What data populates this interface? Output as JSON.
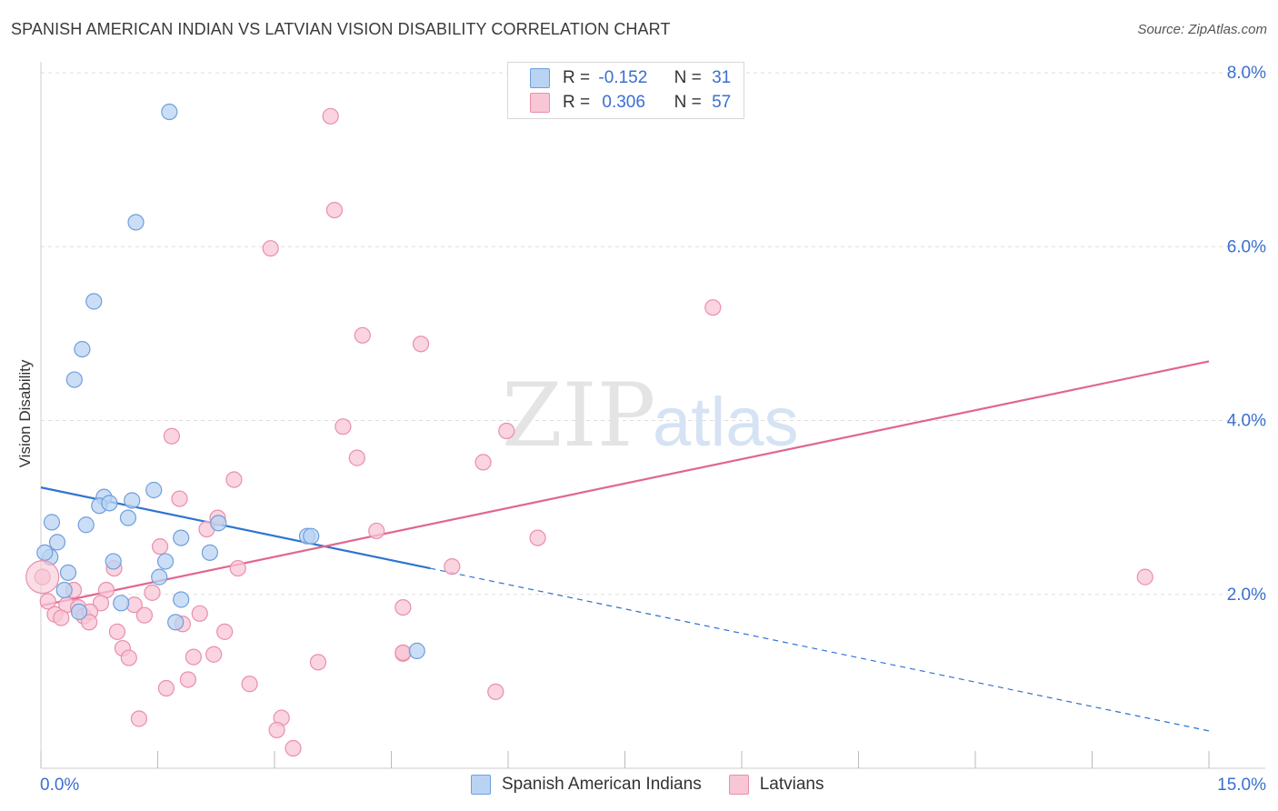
{
  "title": "SPANISH AMERICAN INDIAN VS LATVIAN VISION DISABILITY CORRELATION CHART",
  "source": "Source: ZipAtlas.com",
  "watermark": {
    "zip": "ZIP",
    "atlas": "atlas"
  },
  "colors": {
    "blue_fill": "#b9d3f3",
    "blue_stroke": "#6f9fdc",
    "blue_line": "#2f74d0",
    "pink_fill": "#f8c6d5",
    "pink_stroke": "#ea8faa",
    "pink_line": "#e0668f",
    "tick_label": "#3a6fd0",
    "grid": "#dddddd"
  },
  "legend_top": [
    {
      "r_label": "R =",
      "r_value": "-0.152",
      "n_label": "N =",
      "n_value": "31",
      "color": "blue"
    },
    {
      "r_label": "R =",
      "r_value": "0.306",
      "n_label": "N =",
      "n_value": "57",
      "color": "pink"
    }
  ],
  "legend_bottom": [
    {
      "label": "Spanish American Indians",
      "color": "blue"
    },
    {
      "label": "Latvians",
      "color": "pink"
    }
  ],
  "chart_data": {
    "type": "scatter",
    "title": "SPANISH AMERICAN INDIAN VS LATVIAN VISION DISABILITY CORRELATION CHART",
    "xlabel": "",
    "ylabel": "Vision Disability",
    "xlim": [
      0,
      15
    ],
    "ylim": [
      0,
      8.3
    ],
    "x_tick_labels": [
      "0.0%",
      "15.0%"
    ],
    "y_ticks": [
      2,
      4,
      6,
      8
    ],
    "y_tick_labels": [
      "2.0%",
      "4.0%",
      "6.0%",
      "8.0%"
    ],
    "grid": true,
    "legend_placement": "top-center",
    "series": [
      {
        "name": "Spanish American Indians",
        "color": "blue",
        "r": -0.152,
        "n": 31,
        "points": [
          [
            1.65,
            7.55
          ],
          [
            1.22,
            6.28
          ],
          [
            0.68,
            5.37
          ],
          [
            0.53,
            4.82
          ],
          [
            0.43,
            4.47
          ],
          [
            0.14,
            2.83
          ],
          [
            0.58,
            2.8
          ],
          [
            0.81,
            3.12
          ],
          [
            0.75,
            3.02
          ],
          [
            0.88,
            3.05
          ],
          [
            1.17,
            3.08
          ],
          [
            1.45,
            3.2
          ],
          [
            1.12,
            2.88
          ],
          [
            0.21,
            2.6
          ],
          [
            0.12,
            2.43
          ],
          [
            0.05,
            2.48
          ],
          [
            0.35,
            2.25
          ],
          [
            0.3,
            2.05
          ],
          [
            0.93,
            2.38
          ],
          [
            1.6,
            2.38
          ],
          [
            1.52,
            2.2
          ],
          [
            1.8,
            2.65
          ],
          [
            2.17,
            2.48
          ],
          [
            2.28,
            2.82
          ],
          [
            3.42,
            2.67
          ],
          [
            3.47,
            2.67
          ],
          [
            0.49,
            1.8
          ],
          [
            1.03,
            1.9
          ],
          [
            1.8,
            1.94
          ],
          [
            1.73,
            1.68
          ],
          [
            4.83,
            1.35
          ]
        ]
      },
      {
        "name": "Latvians",
        "color": "pink",
        "r": 0.306,
        "n": 57,
        "points": [
          [
            3.72,
            7.5
          ],
          [
            3.77,
            6.42
          ],
          [
            2.95,
            5.98
          ],
          [
            8.63,
            5.3
          ],
          [
            4.13,
            4.98
          ],
          [
            4.88,
            4.88
          ],
          [
            3.88,
            3.93
          ],
          [
            5.98,
            3.88
          ],
          [
            1.68,
            3.82
          ],
          [
            4.06,
            3.57
          ],
          [
            5.68,
            3.52
          ],
          [
            2.48,
            3.32
          ],
          [
            1.78,
            3.1
          ],
          [
            2.27,
            2.88
          ],
          [
            2.13,
            2.75
          ],
          [
            4.31,
            2.73
          ],
          [
            6.38,
            2.65
          ],
          [
            1.53,
            2.55
          ],
          [
            2.53,
            2.3
          ],
          [
            5.28,
            2.32
          ],
          [
            14.18,
            2.2
          ],
          [
            0.02,
            2.2
          ],
          [
            0.42,
            2.05
          ],
          [
            0.94,
            2.3
          ],
          [
            0.84,
            2.05
          ],
          [
            1.43,
            2.02
          ],
          [
            0.09,
            1.92
          ],
          [
            0.33,
            1.88
          ],
          [
            0.48,
            1.85
          ],
          [
            0.77,
            1.9
          ],
          [
            1.2,
            1.88
          ],
          [
            0.18,
            1.77
          ],
          [
            0.55,
            1.75
          ],
          [
            0.63,
            1.8
          ],
          [
            1.33,
            1.76
          ],
          [
            2.04,
            1.78
          ],
          [
            0.26,
            1.73
          ],
          [
            0.62,
            1.68
          ],
          [
            1.82,
            1.66
          ],
          [
            4.65,
            1.85
          ],
          [
            0.98,
            1.57
          ],
          [
            2.36,
            1.57
          ],
          [
            1.05,
            1.38
          ],
          [
            1.13,
            1.27
          ],
          [
            1.96,
            1.28
          ],
          [
            2.22,
            1.31
          ],
          [
            3.56,
            1.22
          ],
          [
            4.65,
            1.32
          ],
          [
            1.89,
            1.02
          ],
          [
            1.61,
            0.92
          ],
          [
            2.68,
            0.97
          ],
          [
            5.84,
            0.88
          ],
          [
            1.26,
            0.57
          ],
          [
            3.09,
            0.58
          ],
          [
            3.03,
            0.44
          ],
          [
            3.24,
            0.23
          ],
          [
            4.65,
            1.33
          ]
        ]
      }
    ],
    "trend_lines": [
      {
        "series": "Spanish American Indians",
        "solid": [
          [
            0.0,
            3.23
          ],
          [
            5.0,
            2.3
          ]
        ],
        "dashed": [
          [
            5.0,
            2.3
          ],
          [
            15.0,
            0.43
          ]
        ]
      },
      {
        "series": "Latvians",
        "solid": [
          [
            0.0,
            1.87
          ],
          [
            15.0,
            4.68
          ]
        ]
      }
    ]
  }
}
